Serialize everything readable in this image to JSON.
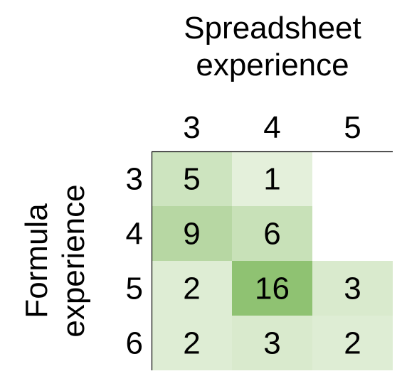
{
  "chart_data": {
    "type": "heatmap",
    "xlabel": "Spreadsheet experience",
    "ylabel": "Formula experience",
    "x_categories": [
      "3",
      "4",
      "5"
    ],
    "y_categories": [
      "3",
      "4",
      "5",
      "6"
    ],
    "cells": [
      [
        5,
        1,
        null
      ],
      [
        9,
        6,
        null
      ],
      [
        2,
        16,
        3
      ],
      [
        2,
        3,
        2
      ]
    ],
    "color_scale": {
      "low": "#e4f0db",
      "high": "#8fc272"
    },
    "value_range": [
      1,
      16
    ]
  }
}
